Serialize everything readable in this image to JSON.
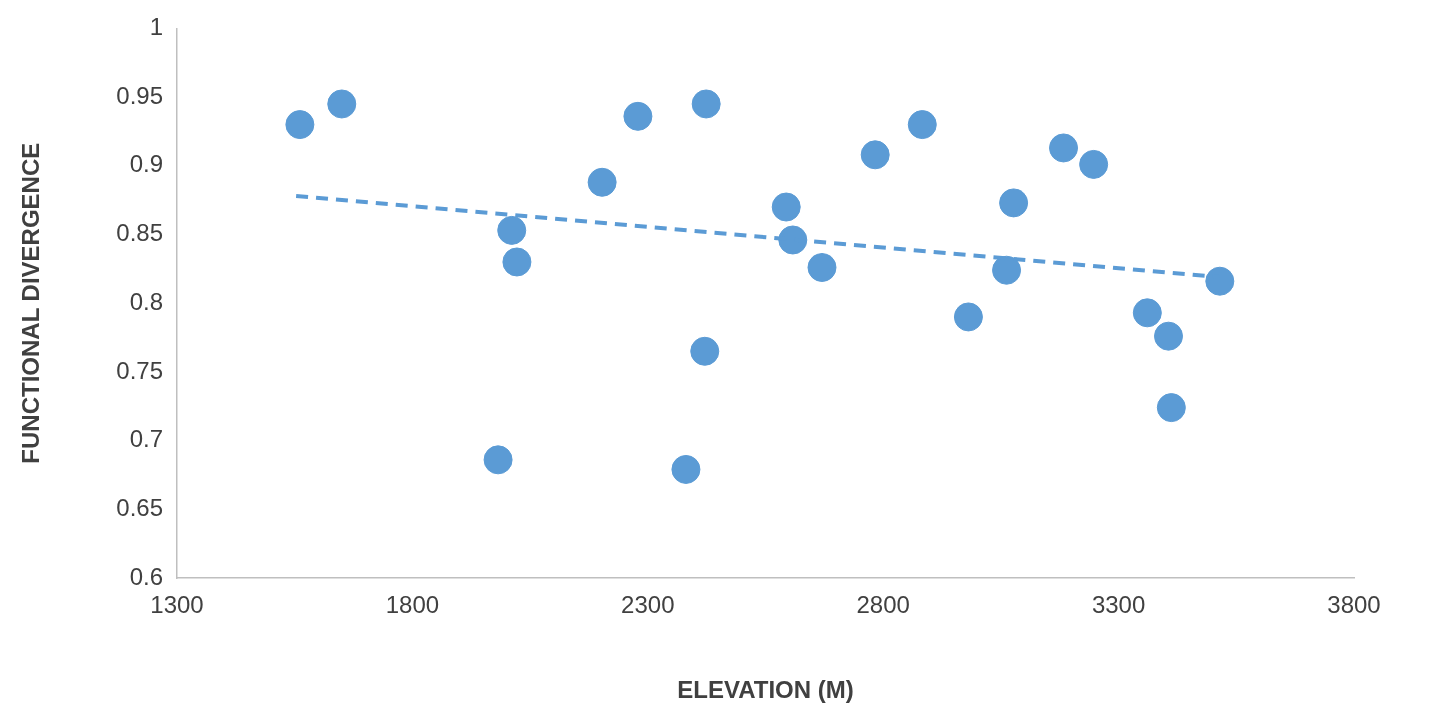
{
  "chart_data": {
    "type": "scatter",
    "xlabel": "ELEVATION (M)",
    "ylabel": "FUNCTIONAL DIVERGENCE",
    "xlim": [
      1300,
      3800
    ],
    "xticks": [
      1300,
      1800,
      2300,
      2800,
      3300,
      3800
    ],
    "ylim": [
      0.6,
      1
    ],
    "yticks": [
      0.6,
      0.65,
      0.7,
      0.75,
      0.8,
      0.85,
      0.9,
      0.95,
      1
    ],
    "grid": false,
    "legend": false,
    "marker": "circle",
    "series": [
      {
        "color": "#5b9bd5",
        "x": [
          1561,
          1650,
          1982,
          2011,
          2022,
          2203,
          2279,
          2381,
          2424,
          2421,
          2594,
          2608,
          2670,
          2783,
          2883,
          2981,
          3062,
          3077,
          3183,
          3247,
          3361,
          3406,
          3412,
          3515
        ],
        "values": [
          0.93,
          0.945,
          0.686,
          0.853,
          0.83,
          0.888,
          0.936,
          0.679,
          0.945,
          0.765,
          0.87,
          0.846,
          0.826,
          0.908,
          0.93,
          0.79,
          0.824,
          0.873,
          0.913,
          0.901,
          0.793,
          0.776,
          0.724,
          0.816
        ]
      },
      {
        "type": "line",
        "color": "#5b9bd5",
        "line_style": "dashed",
        "marker": "none",
        "x": [
          1553,
          3515
        ],
        "values": [
          0.878,
          0.819
        ]
      }
    ]
  }
}
